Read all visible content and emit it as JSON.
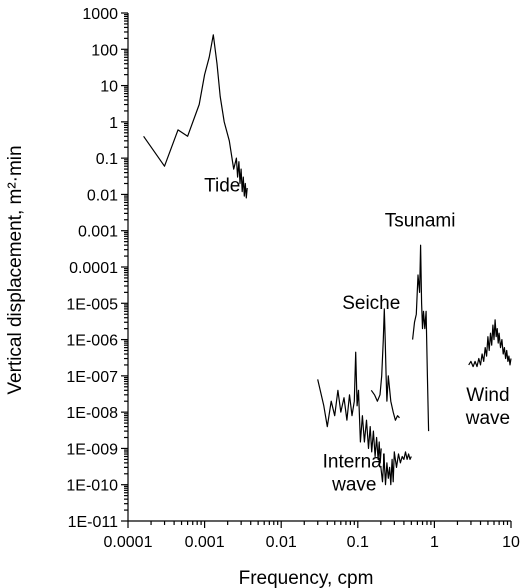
{
  "chart_data": {
    "type": "line",
    "xscale": "log",
    "yscale": "log",
    "xlim": [
      0.0001,
      10
    ],
    "ylim": [
      1e-11,
      1000
    ],
    "xlabel": "Frequency, cpm",
    "ylabel": "Vertical displacement, m²·min",
    "grid": false,
    "xticks": [
      {
        "value": 0.0001,
        "label": "0.0001"
      },
      {
        "value": 0.001,
        "label": "0.001"
      },
      {
        "value": 0.01,
        "label": "0.01"
      },
      {
        "value": 0.1,
        "label": "0.1"
      },
      {
        "value": 1,
        "label": "1"
      },
      {
        "value": 10,
        "label": "10"
      }
    ],
    "yticks": [
      {
        "value": 1000,
        "label": "1000"
      },
      {
        "value": 100,
        "label": "100"
      },
      {
        "value": 10,
        "label": "10"
      },
      {
        "value": 1,
        "label": "1"
      },
      {
        "value": 0.1,
        "label": "0.1"
      },
      {
        "value": 0.01,
        "label": "0.01"
      },
      {
        "value": 0.001,
        "label": "0.001"
      },
      {
        "value": 0.0001,
        "label": "0.0001"
      },
      {
        "value": 1e-05,
        "label": "1E-005"
      },
      {
        "value": 1e-06,
        "label": "1E-006"
      },
      {
        "value": 1e-07,
        "label": "1E-007"
      },
      {
        "value": 1e-08,
        "label": "1E-008"
      },
      {
        "value": 1e-09,
        "label": "1E-009"
      },
      {
        "value": 1e-10,
        "label": "1E-010"
      },
      {
        "value": 1e-11,
        "label": "1E-011"
      }
    ],
    "annotations": [
      {
        "id": "tide",
        "lines": [
          "Tide"
        ],
        "x": 0.0017,
        "y": 0.012
      },
      {
        "id": "tsunami",
        "lines": [
          "Tsunami"
        ],
        "x": 0.65,
        "y": 0.0013
      },
      {
        "id": "seiche",
        "lines": [
          "Seiche"
        ],
        "x": 0.15,
        "y": 7e-06
      },
      {
        "id": "internal-wave",
        "lines": [
          "Internal",
          "wave"
        ],
        "x": 0.09,
        "y": 3e-10
      },
      {
        "id": "wind-wave",
        "lines": [
          "Wind",
          "wave"
        ],
        "x": 5.0,
        "y": 2e-08
      }
    ],
    "series": [
      {
        "id": "tide",
        "x": [
          0.00016,
          0.0003,
          0.00045,
          0.0006,
          0.00085,
          0.001,
          0.00115,
          0.0013,
          0.00145,
          0.0016,
          0.0018,
          0.0021,
          0.0024,
          0.0026,
          0.0027,
          0.0028,
          0.0029,
          0.003,
          0.0031,
          0.0032,
          0.0033,
          0.0034,
          0.0035,
          0.0036
        ],
        "y": [
          0.4,
          0.06,
          0.6,
          0.4,
          3,
          20,
          60,
          250,
          40,
          5,
          1,
          0.3,
          0.05,
          0.1,
          0.03,
          0.08,
          0.02,
          0.05,
          0.012,
          0.03,
          0.009,
          0.02,
          0.008,
          0.015
        ]
      },
      {
        "id": "internal-wave",
        "x": [
          0.03,
          0.036,
          0.04,
          0.045,
          0.05,
          0.055,
          0.06,
          0.066,
          0.072,
          0.078,
          0.084,
          0.09,
          0.094,
          0.098,
          0.102,
          0.108,
          0.115,
          0.122,
          0.13,
          0.138,
          0.145,
          0.152,
          0.16,
          0.168,
          0.176,
          0.184,
          0.19,
          0.196,
          0.202
        ],
        "y": [
          8e-08,
          1.5e-08,
          4e-09,
          2e-08,
          8e-09,
          4e-08,
          1e-08,
          2.5e-08,
          6e-09,
          3e-08,
          8e-09,
          2e-08,
          4.5e-07,
          1.5e-08,
          4e-08,
          1.5e-09,
          8e-09,
          1.5e-09,
          6e-09,
          1e-09,
          4e-09,
          8e-10,
          3e-09,
          6e-10,
          2e-09,
          5e-10,
          1.5e-09,
          4e-10,
          1e-09
        ]
      },
      {
        "id": "internal-wave-tail",
        "x": [
          0.2,
          0.21,
          0.22,
          0.23,
          0.24,
          0.25,
          0.26,
          0.27,
          0.28,
          0.29,
          0.3,
          0.32,
          0.34,
          0.36,
          0.38,
          0.4,
          0.42,
          0.44,
          0.46,
          0.48,
          0.5
        ],
        "y": [
          3e-10,
          1.2e-10,
          6e-10,
          1e-10,
          4e-10,
          1.5e-10,
          3e-10,
          1e-10,
          5e-10,
          1.2e-10,
          8e-10,
          3e-10,
          7e-10,
          4e-10,
          6e-10,
          5e-10,
          8e-10,
          5e-10,
          7e-10,
          5e-10,
          6e-10
        ]
      },
      {
        "id": "seiche",
        "x": [
          0.15,
          0.165,
          0.18,
          0.195,
          0.205,
          0.215,
          0.222,
          0.228,
          0.234,
          0.24,
          0.25,
          0.27,
          0.29,
          0.31,
          0.33,
          0.35
        ],
        "y": [
          4e-08,
          3e-08,
          2e-08,
          3e-08,
          1e-07,
          1e-06,
          7e-06,
          1e-06,
          1e-07,
          2e-08,
          1e-07,
          2e-08,
          1e-08,
          6e-09,
          8e-09,
          7e-09
        ]
      },
      {
        "id": "tsunami",
        "x": [
          0.52,
          0.55,
          0.58,
          0.61,
          0.64,
          0.66,
          0.68,
          0.7,
          0.72,
          0.75,
          0.78,
          0.81,
          0.84
        ],
        "y": [
          1e-06,
          3e-06,
          5e-06,
          6e-05,
          2e-05,
          0.0004,
          1e-05,
          2e-06,
          6e-06,
          2e-06,
          6e-06,
          1e-07,
          3e-09
        ]
      },
      {
        "id": "wind-wave",
        "x": [
          2.8,
          3.0,
          3.2,
          3.4,
          3.6,
          3.8,
          4.0,
          4.2,
          4.4,
          4.6,
          4.8,
          5.0,
          5.2,
          5.4,
          5.6,
          5.8,
          6.0,
          6.2,
          6.4,
          6.6,
          6.8,
          7.0,
          7.3,
          7.6,
          7.9,
          8.2,
          8.5,
          8.8,
          9.1,
          9.4,
          9.7,
          10
        ],
        "y": [
          2e-07,
          2.5e-07,
          1.8e-07,
          2.5e-07,
          1.8e-07,
          3e-07,
          2e-07,
          4e-07,
          2.5e-07,
          6e-07,
          3.5e-07,
          1.2e-06,
          5e-07,
          1.5e-06,
          7e-07,
          2.5e-06,
          1e-06,
          3.5e-06,
          1.2e-06,
          2e-06,
          8e-07,
          1.5e-06,
          6e-07,
          1e-06,
          4e-07,
          6e-07,
          3e-07,
          5e-07,
          2.5e-07,
          3.5e-07,
          2e-07,
          3e-07
        ]
      }
    ]
  }
}
